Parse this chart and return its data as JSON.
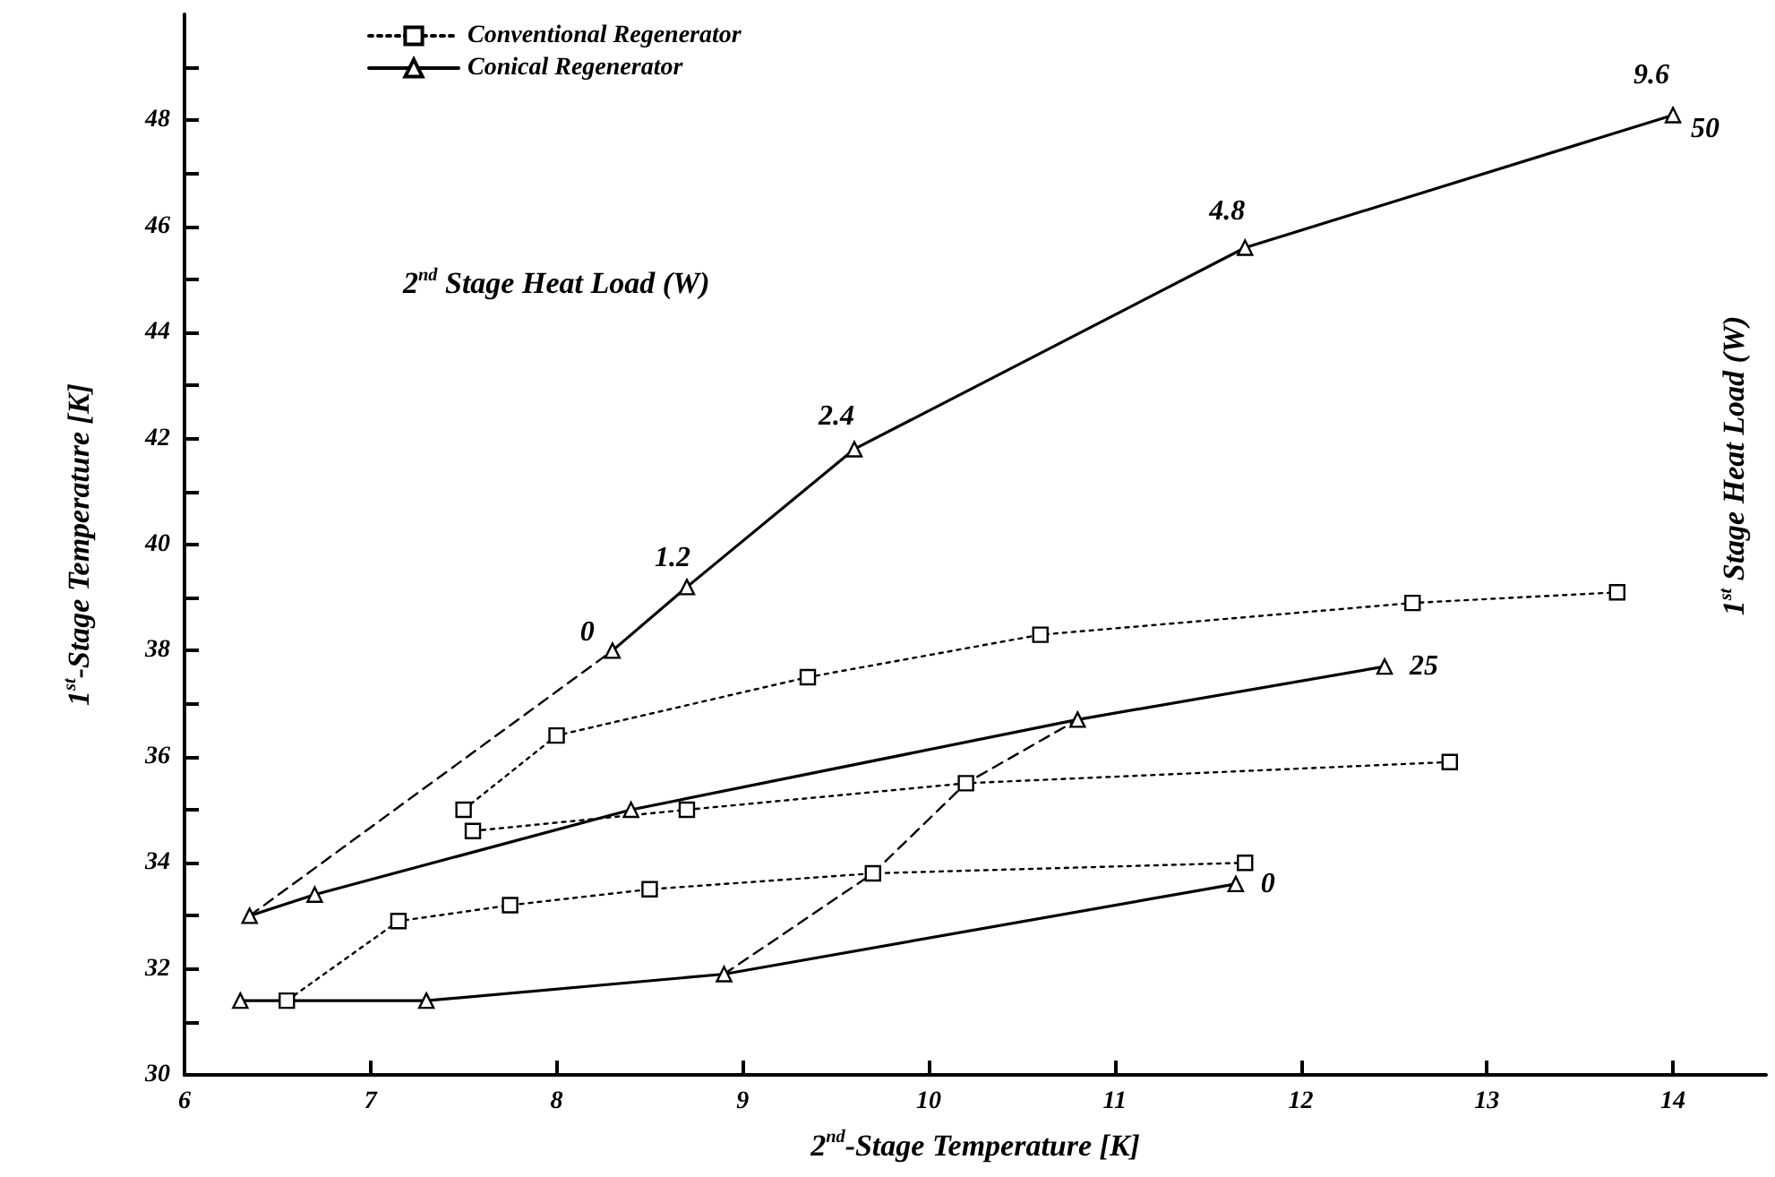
{
  "chart_data": {
    "type": "line",
    "xlabel": "2$^{nd}$-Stage Temperature [K]",
    "ylabel": "1$^{st}$-Stage Temperature [K]",
    "xlim": [
      6,
      14.5
    ],
    "xticks": [
      6,
      7,
      8,
      9,
      10,
      11,
      12,
      13,
      14
    ],
    "ylim": [
      30,
      50
    ],
    "yticks": [
      30,
      {
        "value": 31,
        "label": null
      },
      32,
      {
        "value": 33,
        "label": null
      },
      34,
      {
        "value": 35,
        "label": null
      },
      36,
      {
        "value": 37,
        "label": null
      },
      38,
      {
        "value": 39,
        "label": null
      },
      40,
      {
        "value": 41,
        "label": null
      },
      42,
      {
        "value": 43,
        "label": null
      },
      44,
      {
        "value": 45,
        "label": null
      },
      46,
      {
        "value": 47,
        "label": null
      },
      48,
      {
        "value": 49,
        "label": null
      }
    ],
    "grid": false,
    "legend": "top left",
    "series": [
      {
        "name": "Conventional Regenerator",
        "color": "#000000",
        "marker": "square",
        "line_style": "dotted",
        "x": [
          7.5,
          8.0,
          9.35,
          10.6,
          12.6,
          13.7
        ],
        "values": [
          35.0,
          36.4,
          37.5,
          38.3,
          38.9,
          39.1
        ]
      },
      {
        "color": "#000000",
        "marker": "square",
        "line_style": "dotted",
        "x": [
          7.55,
          8.7,
          10.2,
          12.8
        ],
        "values": [
          34.6,
          35.0,
          35.5,
          35.9
        ]
      },
      {
        "color": "#000000",
        "marker": "square",
        "line_style": "dotted",
        "x": [
          6.55,
          7.15,
          7.75,
          8.5,
          9.7,
          11.7
        ],
        "values": [
          31.4,
          32.9,
          33.2,
          33.5,
          33.8,
          34.0
        ]
      },
      {
        "name": "Conical Regenerator",
        "color": "#000000",
        "marker": "triangle",
        "line_style": "solid",
        "x": [
          8.3,
          8.7,
          9.6,
          11.7,
          14.0
        ],
        "values": [
          38.0,
          39.2,
          41.8,
          45.6,
          48.1
        ]
      },
      {
        "color": "#000000",
        "marker": "triangle",
        "line_style": "solid",
        "x": [
          6.35,
          6.7,
          8.4,
          10.8,
          12.45
        ],
        "values": [
          33.0,
          33.4,
          35.0,
          36.7,
          37.7
        ]
      },
      {
        "color": "#000000",
        "marker": "triangle",
        "line_style": "solid",
        "x": [
          6.3,
          7.3,
          8.9,
          11.65
        ],
        "values": [
          31.4,
          31.4,
          31.9,
          33.6
        ]
      },
      {
        "color": "#000000",
        "marker": "none",
        "line_style": "dashed",
        "x": [
          6.35,
          8.3
        ],
        "values": [
          33.0,
          38.0
        ]
      },
      {
        "color": "#000000",
        "marker": "none",
        "line_style": "dashed",
        "x": [
          8.9,
          9.7,
          10.2,
          10.8
        ],
        "values": [
          31.9,
          33.8,
          35.5,
          36.7
        ]
      }
    ],
    "annotations": [
      "2$^{nd}$ Stage Heat Load (W)",
      "1$^{st}$ Stage Heat Load (W)",
      {
        "text": "0",
        "x": 8.3,
        "y": 38.0
      },
      {
        "text": "1.2",
        "x": 8.7,
        "y": 39.2
      },
      {
        "text": "2.4",
        "x": 9.6,
        "y": 41.8
      },
      {
        "text": "4.8",
        "x": 11.7,
        "y": 45.6
      },
      {
        "text": "9.6",
        "x": 14.0,
        "y": 48.1
      },
      {
        "text": "50",
        "x": 14.0,
        "y": 48.1
      },
      {
        "text": "25",
        "x": 12.45,
        "y": 37.7
      },
      {
        "text": "0",
        "x": 11.65,
        "y": 33.6
      }
    ]
  }
}
